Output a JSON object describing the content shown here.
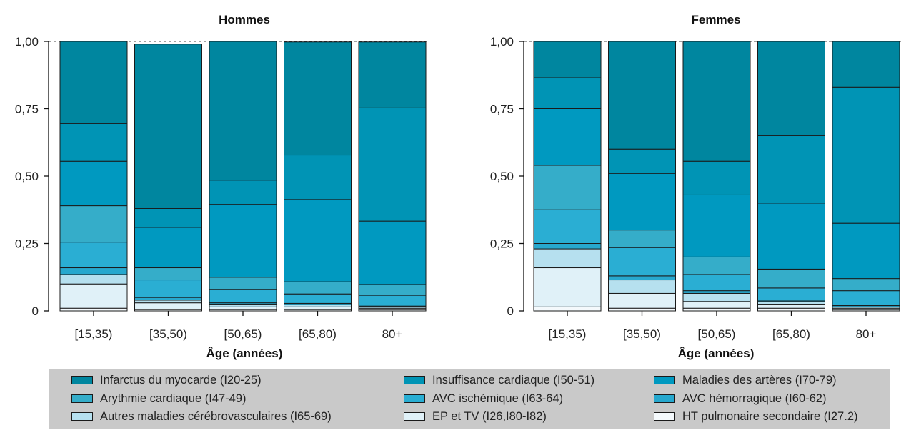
{
  "chart_data": [
    {
      "type": "bar",
      "stacked": true,
      "title": "Hommes",
      "xlabel": "Âge (années)",
      "ylabel": "",
      "ylim": [
        0,
        1
      ],
      "yticks": [
        "0",
        "0,25",
        "0,50",
        "0,75",
        "1,00"
      ],
      "grid": false,
      "categories": [
        "[15,35)",
        "[35,50)",
        "[50,65)",
        "[65,80)",
        "80+"
      ],
      "series": [
        {
          "name": "HT pulmonaire secondaire (I27.2)",
          "color": "#f4f9fc",
          "values": [
            0.01,
            0.005,
            0.005,
            0.005,
            0.005
          ]
        },
        {
          "name": "EP et TV (I26,I80-I82)",
          "color": "#e0f1f8",
          "values": [
            0.09,
            0.025,
            0.01,
            0.01,
            0.005
          ]
        },
        {
          "name": "Autres maladies cérébrovasculaires (I65-69)",
          "color": "#b6e0ef",
          "values": [
            0.035,
            0.01,
            0.01,
            0.008,
            0.005
          ]
        },
        {
          "name": "AVC hémorragique (I60-62)",
          "color": "#27a8ce",
          "values": [
            0.025,
            0.01,
            0.005,
            0.005,
            0.003
          ]
        },
        {
          "name": "AVC ischémique (I63-64)",
          "color": "#2aaed3",
          "values": [
            0.095,
            0.065,
            0.05,
            0.035,
            0.04
          ]
        },
        {
          "name": "Arythmie cardiaque (I47-49)",
          "color": "#35adc9",
          "values": [
            0.135,
            0.045,
            0.045,
            0.045,
            0.04
          ]
        },
        {
          "name": "Maladies des artères (I70-79)",
          "color": "#0099c0",
          "values": [
            0.165,
            0.15,
            0.27,
            0.305,
            0.235
          ]
        },
        {
          "name": "Insuffisance cardiaque (I50-51)",
          "color": "#0094b5",
          "values": [
            0.14,
            0.07,
            0.09,
            0.165,
            0.42
          ]
        },
        {
          "name": "Infarctus du myocarde (I20-25)",
          "color": "#00869f",
          "values": [
            0.305,
            0.61,
            0.515,
            0.42,
            0.245
          ]
        }
      ]
    },
    {
      "type": "bar",
      "stacked": true,
      "title": "Femmes",
      "xlabel": "Âge (années)",
      "ylabel": "",
      "ylim": [
        0,
        1
      ],
      "yticks": [
        "0",
        "0,25",
        "0,50",
        "0,75",
        "1,00"
      ],
      "grid": false,
      "categories": [
        "[15,35)",
        "[35,50)",
        "[50,65)",
        "[65,80)",
        "80+"
      ],
      "series": [
        {
          "name": "HT pulmonaire secondaire (I27.2)",
          "color": "#f4f9fc",
          "values": [
            0.015,
            0.01,
            0.01,
            0.01,
            0.005
          ]
        },
        {
          "name": "EP et TV (I26,I80-I82)",
          "color": "#e0f1f8",
          "values": [
            0.145,
            0.055,
            0.025,
            0.015,
            0.005
          ]
        },
        {
          "name": "Autres maladies cérébrovasculaires (I65-69)",
          "color": "#b6e0ef",
          "values": [
            0.07,
            0.05,
            0.03,
            0.01,
            0.005
          ]
        },
        {
          "name": "AVC hémorragique (I60-62)",
          "color": "#27a8ce",
          "values": [
            0.02,
            0.015,
            0.01,
            0.005,
            0.005
          ]
        },
        {
          "name": "AVC ischémique (I63-64)",
          "color": "#2aaed3",
          "values": [
            0.125,
            0.105,
            0.06,
            0.045,
            0.055
          ]
        },
        {
          "name": "Arythmie cardiaque (I47-49)",
          "color": "#35adc9",
          "values": [
            0.165,
            0.065,
            0.065,
            0.07,
            0.045
          ]
        },
        {
          "name": "Maladies des artères (I70-79)",
          "color": "#0099c0",
          "values": [
            0.21,
            0.21,
            0.23,
            0.245,
            0.205
          ]
        },
        {
          "name": "Insuffisance cardiaque (I50-51)",
          "color": "#0094b5",
          "values": [
            0.115,
            0.09,
            0.125,
            0.25,
            0.505
          ]
        },
        {
          "name": "Infarctus du myocarde (I20-25)",
          "color": "#00869f",
          "values": [
            0.135,
            0.4,
            0.445,
            0.35,
            0.17
          ]
        }
      ]
    }
  ],
  "legend": {
    "placement": "bottom",
    "items": [
      {
        "label": "Infarctus du myocarde (I20-25)",
        "color": "#00869f"
      },
      {
        "label": "Insuffisance cardiaque (I50-51)",
        "color": "#0094b5"
      },
      {
        "label": "Maladies des artères (I70-79)",
        "color": "#0099c0"
      },
      {
        "label": "Arythmie cardiaque (I47-49)",
        "color": "#35adc9"
      },
      {
        "label": "AVC ischémique (I63-64)",
        "color": "#2aaed3"
      },
      {
        "label": "AVC hémorragique (I60-62)",
        "color": "#27a8ce"
      },
      {
        "label": "Autres maladies cérébrovasculaires (I65-69)",
        "color": "#b6e0ef"
      },
      {
        "label": "EP et TV (I26,I80-I82)",
        "color": "#e0f1f8"
      },
      {
        "label": "HT pulmonaire secondaire (I27.2)",
        "color": "#f4f9fc"
      }
    ]
  }
}
